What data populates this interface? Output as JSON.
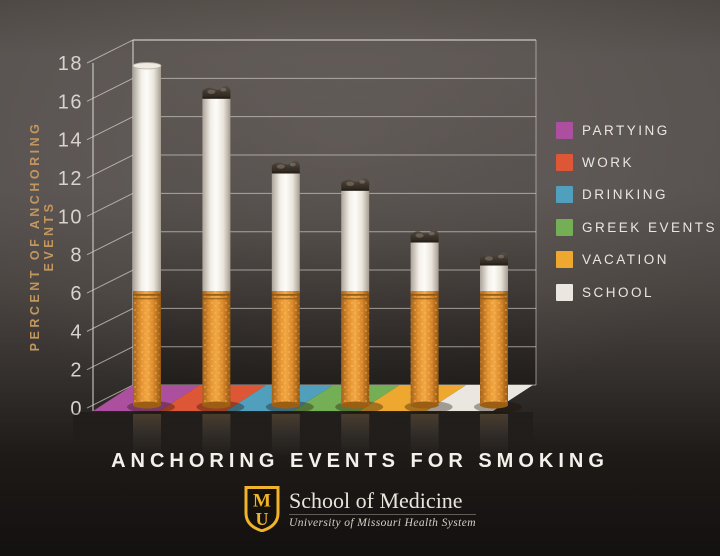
{
  "title": "ANCHORING EVENTS FOR SMOKING",
  "chart_data": {
    "type": "bar",
    "style": "3d cigarette bars on colored floor tiles",
    "categories": [
      "Partying",
      "Work",
      "Drinking",
      "Greek Events",
      "Vacation",
      "School"
    ],
    "values": [
      17.8,
      16.6,
      12.7,
      11.8,
      9.1,
      7.9
    ],
    "bar_colors": [
      "#ad4f9f",
      "#dd5736",
      "#4f9fbd",
      "#74ae55",
      "#eea72f",
      "#eae6e0"
    ],
    "has_ash_tip": [
      false,
      true,
      true,
      true,
      true,
      true
    ],
    "title": "ANCHORING EVENTS FOR SMOKING",
    "xlabel": "",
    "ylabel": "PERCENT OF ANCHORING EVENTS",
    "ylim": [
      0,
      18
    ],
    "yticks": [
      18,
      16,
      14,
      12,
      10,
      8,
      6,
      4,
      2,
      0
    ],
    "grid": true,
    "legend_position": "right"
  },
  "legend": {
    "items": [
      {
        "label": "PARTYING",
        "color": "#ad4f9f"
      },
      {
        "label": "WORK",
        "color": "#dd5736"
      },
      {
        "label": "DRINKING",
        "color": "#4f9fbd"
      },
      {
        "label": "GREEK EVENTS",
        "color": "#74ae55"
      },
      {
        "label": "VACATION",
        "color": "#eea72f"
      },
      {
        "label": "SCHOOL",
        "color": "#eae6e0"
      }
    ]
  },
  "footer": {
    "org": "School of Medicine",
    "tagline": "University of Missouri Health System",
    "logo_m": "M",
    "logo_u": "U",
    "logo_color": "#f0b32a"
  },
  "colors": {
    "axis_label_gold": "#c2975f",
    "grid_line": "#d8d3cc",
    "tick_text": "#d8d3cc",
    "background_top": "#575150",
    "background_bottom": "#131010",
    "cigarette_paper": "#f5f2ec",
    "cigarette_filter": "#e3932f",
    "ash": "#3c352d"
  }
}
